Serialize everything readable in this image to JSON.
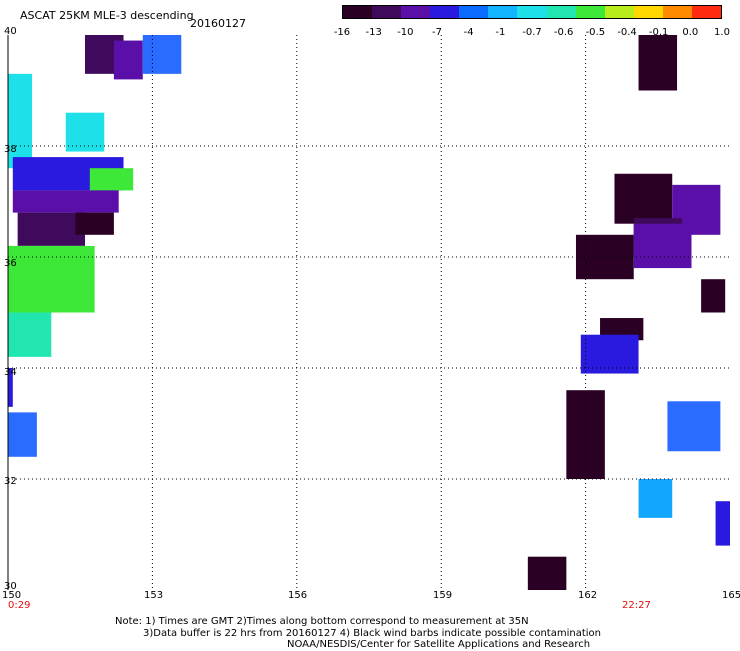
{
  "header": {
    "title": "ASCAT 25KM MLE-3 descending",
    "date": "20160127"
  },
  "colorbar": {
    "labels": [
      "-16",
      "-13",
      "-10",
      "-7",
      "-4",
      "-1",
      "-0.7",
      "-0.6",
      "-0.5",
      "-0.4",
      "-0.1",
      "0.0",
      "1.0"
    ],
    "colors": [
      "#2a0024",
      "#3f0a5c",
      "#5a10a8",
      "#2a1ae0",
      "#0a6cff",
      "#12b4ff",
      "#1ee0e8",
      "#22e6b0",
      "#3ee838",
      "#b8ec1a",
      "#ffd800",
      "#ff8a00",
      "#ff2a10"
    ]
  },
  "map": {
    "lat_labels": [
      "40",
      "38",
      "36",
      "34",
      "32",
      "30"
    ],
    "lon_labels": [
      "150",
      "153",
      "156",
      "159",
      "162",
      "165"
    ],
    "time_labels": {
      "start": "0:29",
      "end": "22:27"
    },
    "lon_range": [
      150,
      165
    ],
    "lat_range": [
      30,
      40
    ],
    "cells": [
      {
        "lon0": 151.6,
        "lon1": 152.4,
        "lat0": 39.3,
        "lat1": 40.0,
        "color": "#3f0a5c"
      },
      {
        "lon0": 152.2,
        "lon1": 152.8,
        "lat0": 39.2,
        "lat1": 39.9,
        "color": "#5a10a8"
      },
      {
        "lon0": 152.8,
        "lon1": 153.6,
        "lat0": 39.3,
        "lat1": 40.0,
        "color": "#2a6cff"
      },
      {
        "lon0": 150.0,
        "lon1": 150.5,
        "lat0": 37.6,
        "lat1": 39.3,
        "color": "#1ee0e8"
      },
      {
        "lon0": 151.2,
        "lon1": 152.0,
        "lat0": 37.9,
        "lat1": 38.6,
        "color": "#1ee0e8"
      },
      {
        "lon0": 150.1,
        "lon1": 152.4,
        "lat0": 37.2,
        "lat1": 37.8,
        "color": "#2a1ae0"
      },
      {
        "lon0": 151.7,
        "lon1": 152.6,
        "lat0": 37.2,
        "lat1": 37.6,
        "color": "#3ee838"
      },
      {
        "lon0": 150.1,
        "lon1": 152.3,
        "lat0": 36.8,
        "lat1": 37.2,
        "color": "#5a10a8"
      },
      {
        "lon0": 150.2,
        "lon1": 151.6,
        "lat0": 36.2,
        "lat1": 36.8,
        "color": "#3f0a5c"
      },
      {
        "lon0": 151.4,
        "lon1": 152.2,
        "lat0": 36.4,
        "lat1": 36.8,
        "color": "#2a0024"
      },
      {
        "lon0": 150.0,
        "lon1": 151.8,
        "lat0": 35.0,
        "lat1": 36.2,
        "color": "#3ee838"
      },
      {
        "lon0": 150.0,
        "lon1": 150.9,
        "lat0": 34.2,
        "lat1": 35.0,
        "color": "#22e6b0"
      },
      {
        "lon0": 150.0,
        "lon1": 150.1,
        "lat0": 33.3,
        "lat1": 34.0,
        "color": "#2a1ae0"
      },
      {
        "lon0": 150.0,
        "lon1": 150.6,
        "lat0": 32.4,
        "lat1": 33.2,
        "color": "#2a6cff"
      },
      {
        "lon0": 163.1,
        "lon1": 163.9,
        "lat0": 39.0,
        "lat1": 40.0,
        "color": "#2a0024"
      },
      {
        "lon0": 162.6,
        "lon1": 163.8,
        "lat0": 36.6,
        "lat1": 37.5,
        "color": "#2a0024"
      },
      {
        "lon0": 163.8,
        "lon1": 164.8,
        "lat0": 36.4,
        "lat1": 37.3,
        "color": "#5a10a8"
      },
      {
        "lon0": 163.0,
        "lon1": 164.0,
        "lat0": 36.0,
        "lat1": 36.7,
        "color": "#3f0a5c"
      },
      {
        "lon0": 161.8,
        "lon1": 163.0,
        "lat0": 35.6,
        "lat1": 36.4,
        "color": "#2a0024"
      },
      {
        "lon0": 163.0,
        "lon1": 164.2,
        "lat0": 35.8,
        "lat1": 36.6,
        "color": "#5a10a8"
      },
      {
        "lon0": 164.4,
        "lon1": 164.9,
        "lat0": 35.0,
        "lat1": 35.6,
        "color": "#2a0024"
      },
      {
        "lon0": 162.3,
        "lon1": 163.2,
        "lat0": 34.5,
        "lat1": 34.9,
        "color": "#2a0024"
      },
      {
        "lon0": 161.9,
        "lon1": 163.1,
        "lat0": 33.9,
        "lat1": 34.6,
        "color": "#2a1ae0"
      },
      {
        "lon0": 161.6,
        "lon1": 162.4,
        "lat0": 32.0,
        "lat1": 33.6,
        "color": "#2a0024"
      },
      {
        "lon0": 163.7,
        "lon1": 164.8,
        "lat0": 32.5,
        "lat1": 33.4,
        "color": "#2a6cff"
      },
      {
        "lon0": 163.1,
        "lon1": 163.8,
        "lat0": 31.3,
        "lat1": 32.0,
        "color": "#12a6ff"
      },
      {
        "lon0": 164.7,
        "lon1": 165.0,
        "lat0": 30.8,
        "lat1": 31.6,
        "color": "#2a1ae0"
      },
      {
        "lon0": 160.8,
        "lon1": 161.6,
        "lat0": 30.0,
        "lat1": 30.6,
        "color": "#2a0024"
      }
    ]
  },
  "notes": {
    "line1": "Note: 1) Times are GMT 2)Times along bottom correspond to measurement at 35N",
    "line2": "3)Data buffer is 22 hrs from 20160127 4) Black wind barbs indicate possible contamination",
    "line3": "NOAA/NESDIS/Center for Satellite Applications and Research"
  }
}
